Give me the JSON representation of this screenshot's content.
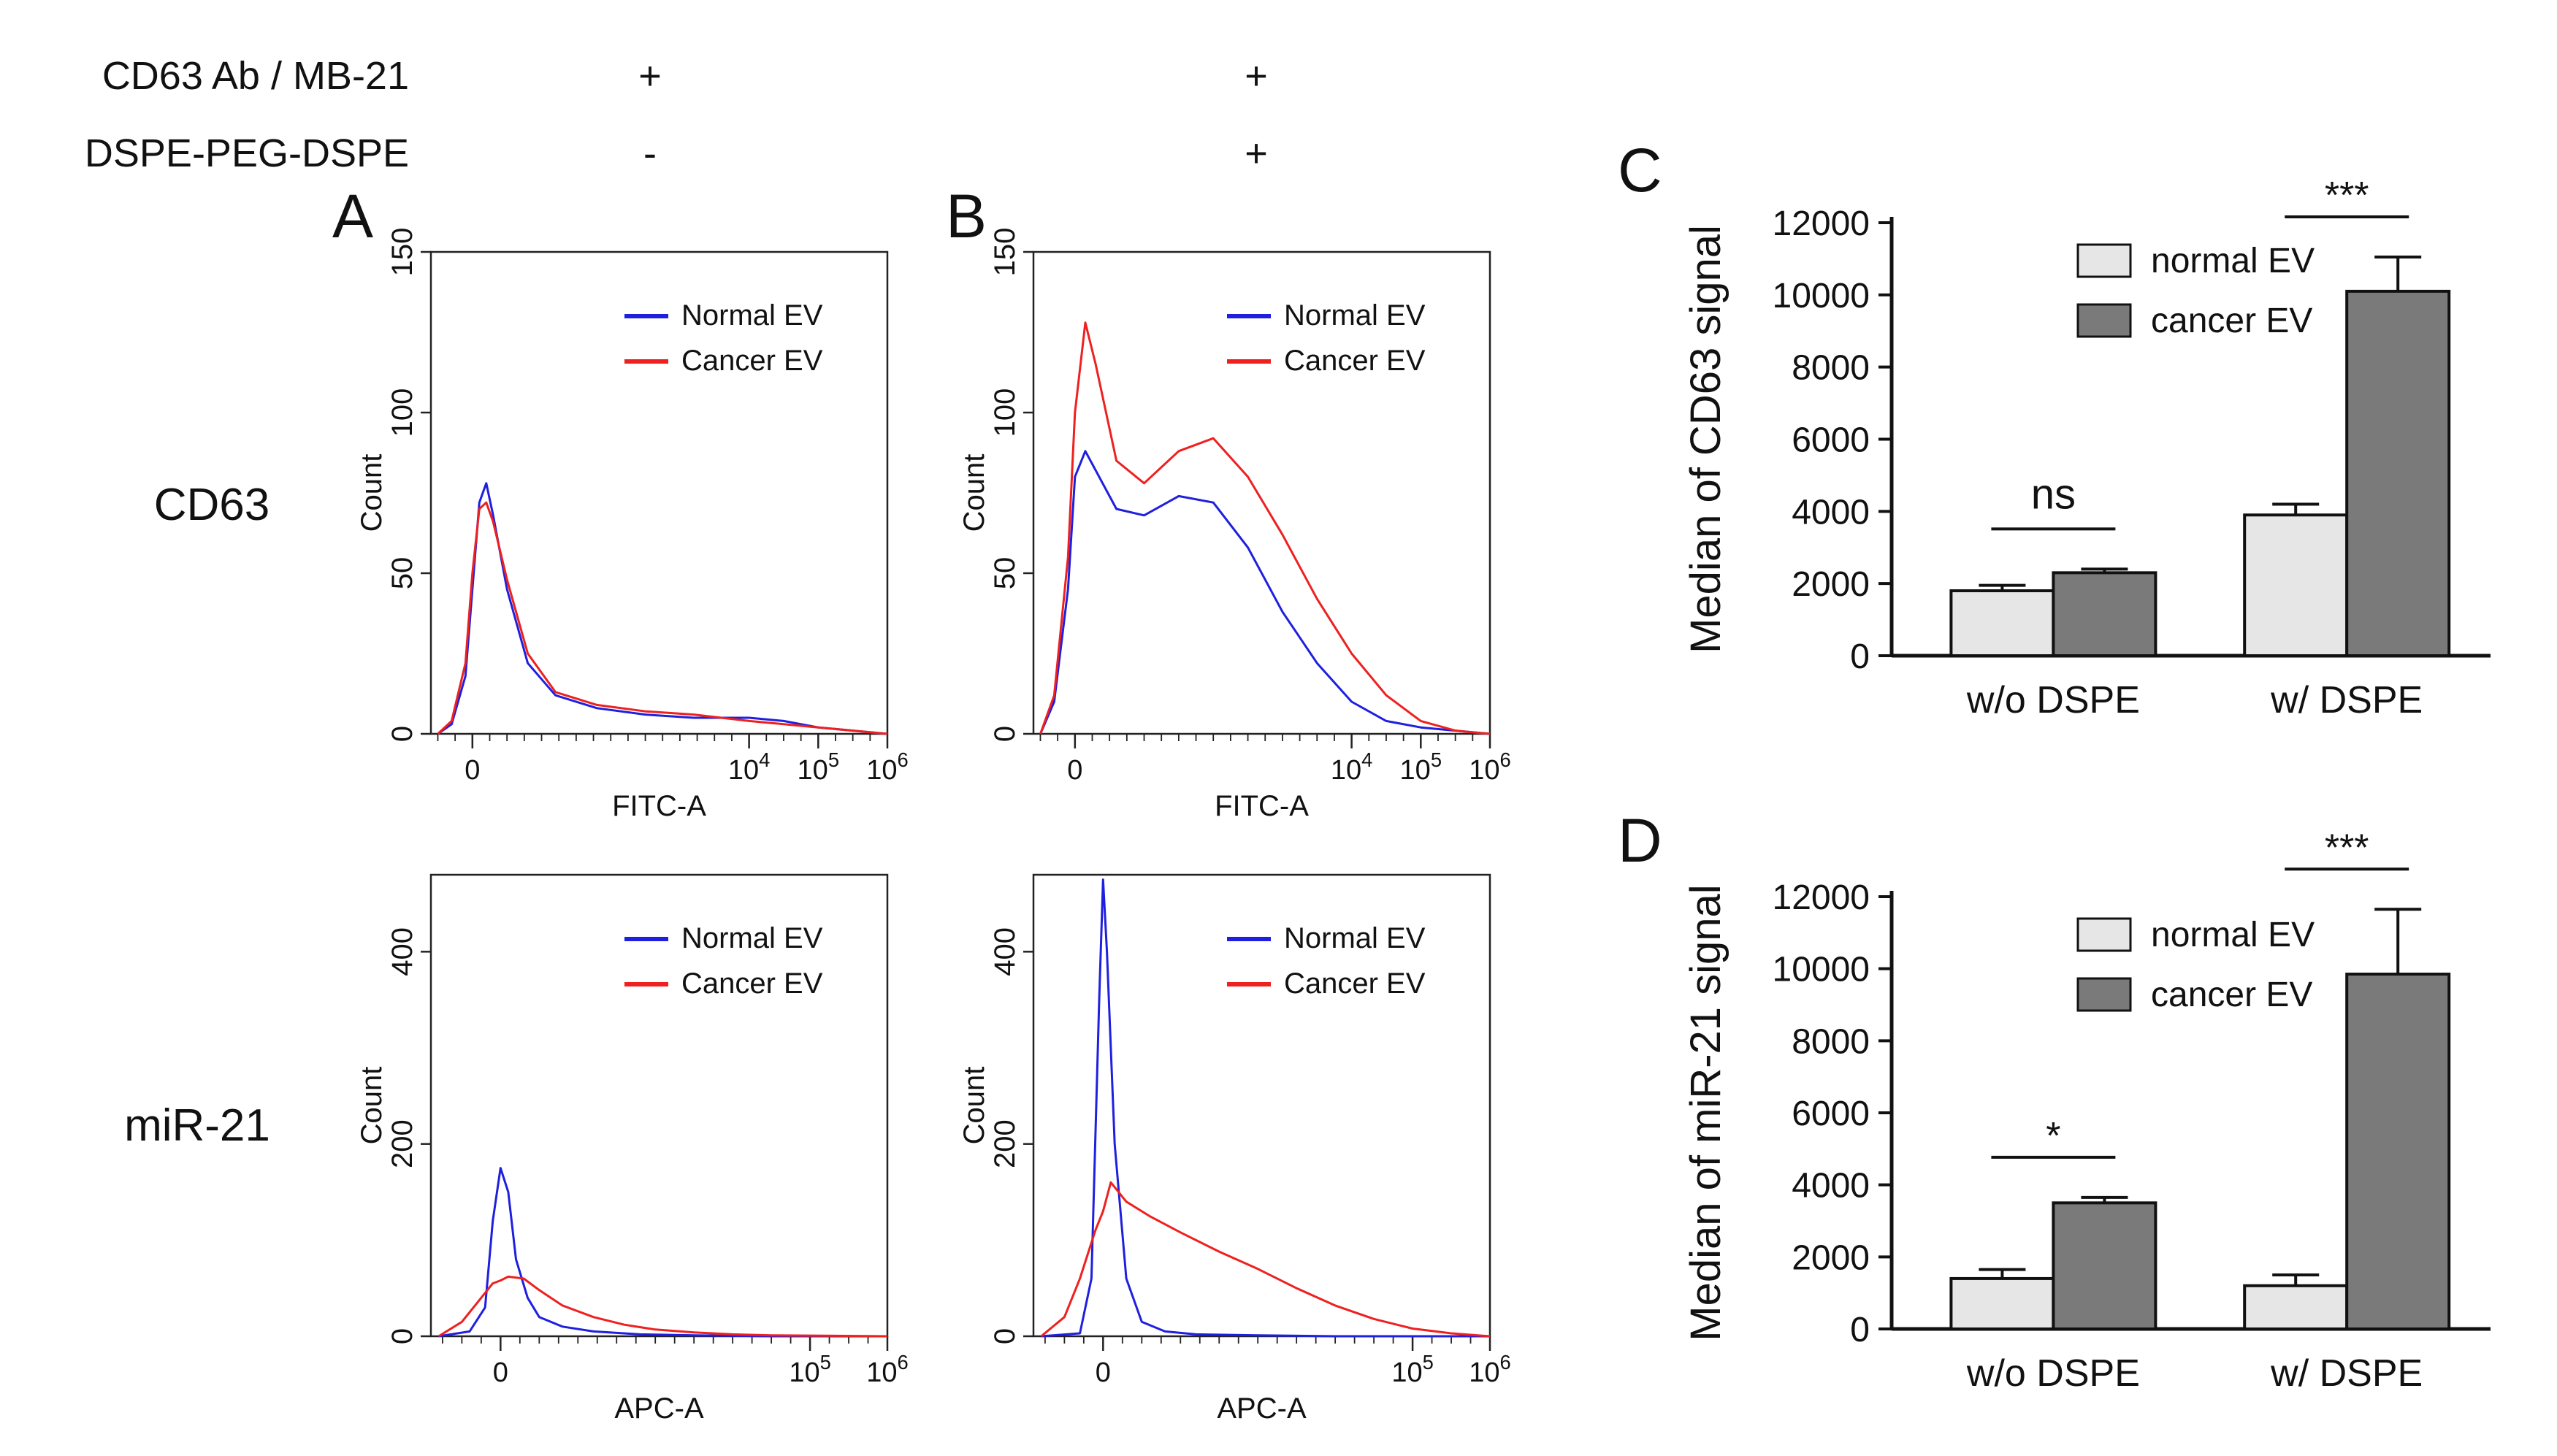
{
  "conditions": {
    "row1": {
      "label": "CD63 Ab / MB-21",
      "col_a": "+",
      "col_b": "+"
    },
    "row2": {
      "label": "DSPE-PEG-DSPE",
      "col_a": "-",
      "col_b": "+"
    }
  },
  "row_labels": {
    "cd63": "CD63",
    "mir21": "miR-21"
  },
  "panel_letters": {
    "a": "A",
    "b": "B",
    "c": "C",
    "d": "D"
  },
  "colors": {
    "normal": "#1f1fe0",
    "cancer": "#ee2020",
    "bar_normal": "#e6e6e6",
    "bar_cancer": "#7a7a7a"
  },
  "chart_data": [
    {
      "id": "A-top",
      "type": "line",
      "panel": "A",
      "xlabel": "FITC-A",
      "ylabel": "Count",
      "ylim": [
        0,
        150
      ],
      "yticks": [
        "0",
        "50",
        "100",
        "150"
      ],
      "xticks": [
        {
          "v": 0,
          "label": "0"
        },
        {
          "v": 4,
          "label": "10^4"
        },
        {
          "v": 5,
          "label": "10^5"
        },
        {
          "v": 6,
          "label": "10^6"
        }
      ],
      "xlim": [
        -0.6,
        6
      ],
      "legend": [
        "Normal EV",
        "Cancer EV"
      ],
      "series": [
        {
          "name": "Normal EV",
          "color": "#1f1fe0",
          "x": [
            -0.5,
            -0.3,
            -0.1,
            0,
            0.1,
            0.2,
            0.3,
            0.5,
            0.8,
            1.2,
            1.8,
            2.5,
            3.2,
            4,
            4.5,
            5,
            5.5,
            6
          ],
          "y": [
            0,
            3,
            18,
            45,
            72,
            78,
            68,
            45,
            22,
            12,
            8,
            6,
            5,
            5,
            4,
            2,
            1,
            0
          ]
        },
        {
          "name": "Cancer EV",
          "color": "#ee2020",
          "x": [
            -0.5,
            -0.3,
            -0.1,
            0,
            0.1,
            0.2,
            0.3,
            0.5,
            0.8,
            1.2,
            1.8,
            2.5,
            3.2,
            4,
            4.5,
            5,
            5.5,
            6
          ],
          "y": [
            0,
            4,
            22,
            50,
            70,
            72,
            66,
            48,
            25,
            13,
            9,
            7,
            6,
            4,
            3,
            2,
            1,
            0
          ]
        }
      ]
    },
    {
      "id": "B-top",
      "type": "line",
      "panel": "B",
      "xlabel": "FITC-A",
      "ylabel": "Count",
      "ylim": [
        0,
        150
      ],
      "yticks": [
        "0",
        "50",
        "100",
        "150"
      ],
      "xticks": [
        {
          "v": 0,
          "label": "0"
        },
        {
          "v": 4,
          "label": "10^4"
        },
        {
          "v": 5,
          "label": "10^5"
        },
        {
          "v": 6,
          "label": "10^6"
        }
      ],
      "xlim": [
        -0.6,
        6
      ],
      "legend": [
        "Normal EV",
        "Cancer EV"
      ],
      "series": [
        {
          "name": "Normal EV",
          "color": "#1f1fe0",
          "x": [
            -0.5,
            -0.3,
            -0.1,
            0,
            0.15,
            0.3,
            0.6,
            1,
            1.5,
            2,
            2.5,
            3,
            3.5,
            4,
            4.5,
            5,
            5.5,
            6
          ],
          "y": [
            0,
            10,
            45,
            80,
            88,
            82,
            70,
            68,
            74,
            72,
            58,
            38,
            22,
            10,
            4,
            2,
            1,
            0
          ]
        },
        {
          "name": "Cancer EV",
          "color": "#ee2020",
          "x": [
            -0.5,
            -0.3,
            -0.1,
            0,
            0.15,
            0.3,
            0.6,
            1,
            1.5,
            2,
            2.5,
            3,
            3.5,
            4,
            4.5,
            5,
            5.5,
            6
          ],
          "y": [
            0,
            12,
            55,
            100,
            128,
            115,
            85,
            78,
            88,
            92,
            80,
            62,
            42,
            25,
            12,
            4,
            1,
            0
          ]
        }
      ]
    },
    {
      "id": "A-bottom",
      "type": "line",
      "panel": "A",
      "xlabel": "APC-A",
      "ylabel": "Count",
      "ylim": [
        0,
        480
      ],
      "yticks": [
        "0",
        "200",
        "400"
      ],
      "xticks": [
        {
          "v": 0,
          "label": "0"
        },
        {
          "v": 4,
          "label": "10^5"
        },
        {
          "v": 5,
          "label": "10^6"
        }
      ],
      "xlim": [
        -0.9,
        5
      ],
      "legend": [
        "Normal EV",
        "Cancer EV"
      ],
      "series": [
        {
          "name": "Normal EV",
          "color": "#1f1fe0",
          "x": [
            -0.8,
            -0.4,
            -0.2,
            -0.1,
            0,
            0.1,
            0.2,
            0.35,
            0.5,
            0.8,
            1.2,
            1.8,
            2.5,
            3.5,
            5
          ],
          "y": [
            0,
            5,
            30,
            120,
            175,
            150,
            80,
            40,
            20,
            10,
            5,
            2,
            1,
            0,
            0
          ]
        },
        {
          "name": "Cancer EV",
          "color": "#ee2020",
          "x": [
            -0.8,
            -0.5,
            -0.3,
            -0.1,
            0,
            0.1,
            0.3,
            0.5,
            0.8,
            1.2,
            1.6,
            2,
            2.5,
            3,
            3.5,
            5
          ],
          "y": [
            0,
            15,
            35,
            55,
            58,
            62,
            60,
            48,
            32,
            20,
            12,
            7,
            4,
            2,
            1,
            0
          ]
        }
      ]
    },
    {
      "id": "B-bottom",
      "type": "line",
      "panel": "B",
      "xlabel": "APC-A",
      "ylabel": "Count",
      "ylim": [
        0,
        480
      ],
      "yticks": [
        "0",
        "200",
        "400"
      ],
      "xticks": [
        {
          "v": 0,
          "label": "0"
        },
        {
          "v": 4,
          "label": "10^5"
        },
        {
          "v": 5,
          "label": "10^6"
        }
      ],
      "xlim": [
        -0.9,
        5
      ],
      "legend": [
        "Normal EV",
        "Cancer EV"
      ],
      "series": [
        {
          "name": "Normal EV",
          "color": "#1f1fe0",
          "x": [
            -0.8,
            -0.3,
            -0.15,
            -0.05,
            0,
            0.05,
            0.15,
            0.3,
            0.5,
            0.8,
            1.2,
            2,
            3,
            5
          ],
          "y": [
            0,
            3,
            60,
            350,
            475,
            400,
            200,
            60,
            15,
            5,
            2,
            1,
            0,
            0
          ]
        },
        {
          "name": "Cancer EV",
          "color": "#ee2020",
          "x": [
            -0.8,
            -0.5,
            -0.3,
            -0.1,
            0,
            0.1,
            0.3,
            0.6,
            1,
            1.5,
            2,
            2.5,
            3,
            3.5,
            4,
            4.5,
            5
          ],
          "y": [
            0,
            20,
            60,
            110,
            130,
            160,
            140,
            125,
            108,
            88,
            70,
            50,
            32,
            18,
            8,
            3,
            0
          ]
        }
      ]
    },
    {
      "id": "C",
      "type": "bar",
      "panel": "C",
      "ylabel": "Median of CD63 signal",
      "ylim": [
        0,
        12000
      ],
      "yticks": [
        "0",
        "2000",
        "4000",
        "6000",
        "8000",
        "10000",
        "12000"
      ],
      "categories": [
        "w/o DSPE",
        "w/ DSPE"
      ],
      "series": [
        {
          "name": "normal EV",
          "values": [
            1800,
            3900
          ],
          "errors": [
            150,
            300
          ]
        },
        {
          "name": "cancer EV",
          "values": [
            2300,
            10100
          ],
          "errors": [
            100,
            950
          ]
        }
      ],
      "significance": [
        "ns",
        "***"
      ]
    },
    {
      "id": "D",
      "type": "bar",
      "panel": "D",
      "ylabel": "Median of miR-21 signal",
      "ylim": [
        0,
        12000
      ],
      "yticks": [
        "0",
        "2000",
        "4000",
        "6000",
        "8000",
        "10000",
        "12000"
      ],
      "categories": [
        "w/o DSPE",
        "w/ DSPE"
      ],
      "series": [
        {
          "name": "normal EV",
          "values": [
            1400,
            1200
          ],
          "errors": [
            250,
            300
          ]
        },
        {
          "name": "cancer EV",
          "values": [
            3500,
            9850
          ],
          "errors": [
            150,
            1800
          ]
        }
      ],
      "significance": [
        "*",
        "***"
      ]
    }
  ]
}
